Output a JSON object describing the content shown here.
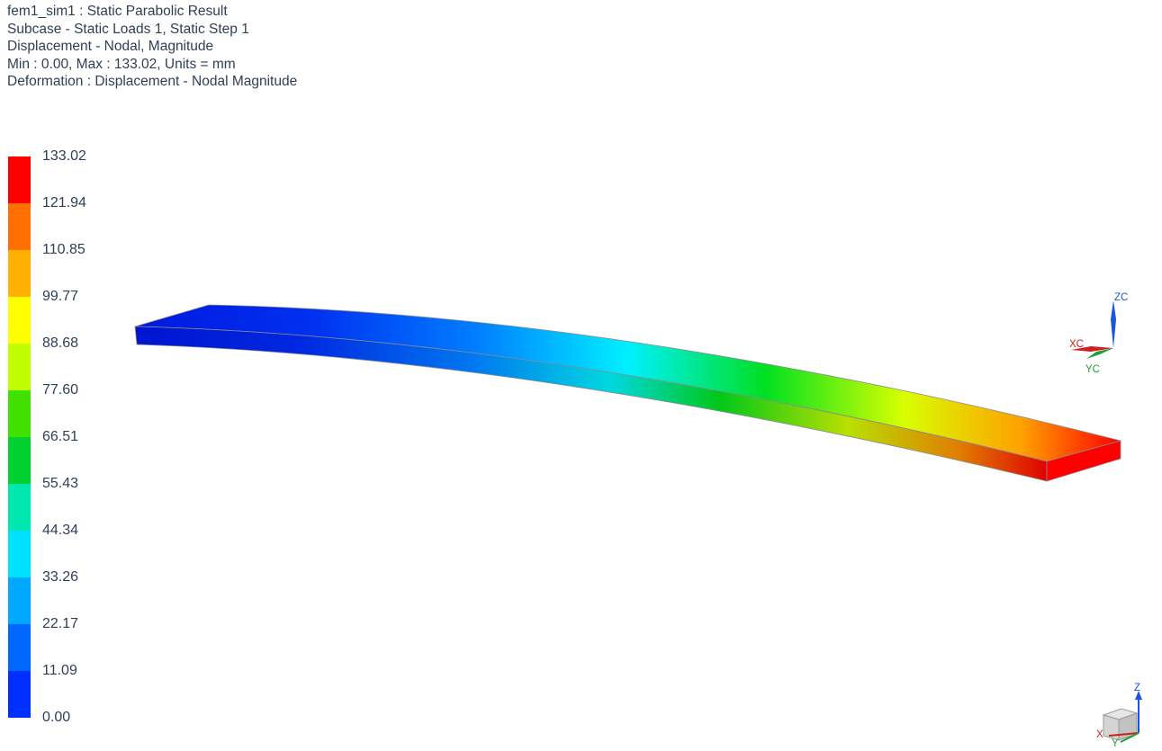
{
  "header": {
    "line1": "fem1_sim1 : Static Parabolic Result",
    "line2": "Subcase - Static Loads 1, Static Step 1",
    "line3": "Displacement - Nodal, Magnitude",
    "line4": "Min : 0.00, Max : 133.02, Units = mm",
    "line5": "Deformation : Displacement - Nodal Magnitude"
  },
  "legend": {
    "labels": [
      "133.02",
      "121.94",
      "110.85",
      "99.77",
      "88.68",
      "77.60",
      "66.51",
      "55.43",
      "44.34",
      "33.26",
      "22.17",
      "11.09",
      "0.00"
    ],
    "colors": [
      "#ff0000",
      "#ff7000",
      "#ffb000",
      "#ffff00",
      "#c0ff00",
      "#40e000",
      "#00d030",
      "#00e8b0",
      "#00e0ff",
      "#00a8ff",
      "#0068ff",
      "#0030ff"
    ]
  },
  "triad": {
    "zc": "ZC",
    "xc": "XC",
    "yc": "YC"
  },
  "view_triad": {
    "z": "Z",
    "x": "X",
    "y": "Y"
  },
  "colors": {
    "text": "#2f3f55",
    "axis_z": "#1a55e0",
    "axis_x": "#d02020",
    "axis_y": "#20a030"
  }
}
